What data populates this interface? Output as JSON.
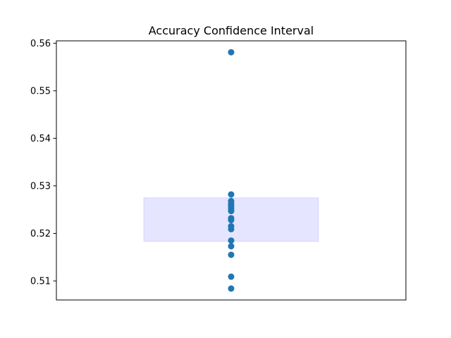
{
  "chart_data": {
    "type": "scatter",
    "title": "Accuracy Confidence Interval",
    "xlabel": "",
    "ylabel": "",
    "ylim": [
      0.506,
      0.5605
    ],
    "y_ticks": [
      0.51,
      0.52,
      0.53,
      0.54,
      0.55,
      0.56
    ],
    "y_tick_labels": [
      "0.51",
      "0.52",
      "0.53",
      "0.54",
      "0.55",
      "0.56"
    ],
    "x_ticks_visible": false,
    "grid": false,
    "legend": "none",
    "series": [
      {
        "color": "#1f77b4",
        "x": 0,
        "values": [
          0.5581,
          0.5282,
          0.5268,
          0.5262,
          0.5257,
          0.5252,
          0.5247,
          0.5232,
          0.5228,
          0.5215,
          0.5209,
          0.5185,
          0.5173,
          0.5155,
          0.5109,
          0.5084
        ]
      }
    ],
    "interval": {
      "lower": 0.5183,
      "upper": 0.5275,
      "x_from": -0.5,
      "x_to": 0.5,
      "color": "#0000ff",
      "alpha": 0.1
    },
    "xlim": [
      -1,
      1
    ]
  }
}
